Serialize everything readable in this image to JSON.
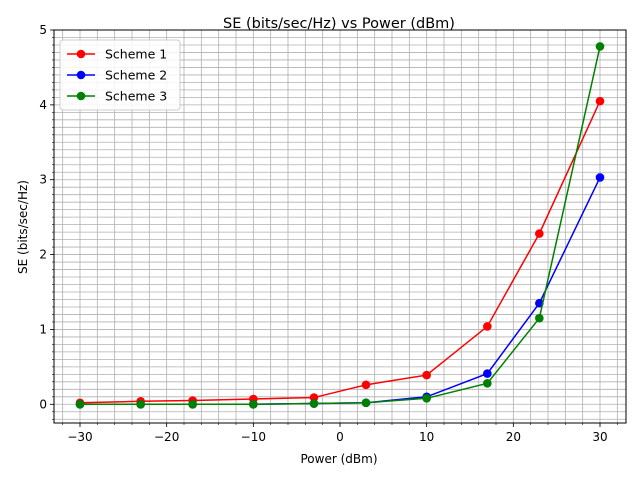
{
  "chart_data": {
    "type": "line",
    "title": "SE (bits/sec/Hz) vs Power (dBm)",
    "xlabel": "Power (dBm)",
    "ylabel": "SE (bits/sec/Hz)",
    "x": [
      -30,
      -23,
      -17,
      -10,
      -3,
      3,
      10,
      17,
      23,
      30
    ],
    "xlim": [
      -33,
      33
    ],
    "ylim": [
      -0.25,
      5.0
    ],
    "xticks": [
      -30,
      -20,
      -10,
      0,
      10,
      20,
      30
    ],
    "yticks": [
      0,
      1,
      2,
      3,
      4,
      5
    ],
    "xtick_labels": [
      "−30",
      "−20",
      "−10",
      "0",
      "10",
      "20",
      "30"
    ],
    "ytick_labels": [
      "0",
      "1",
      "2",
      "3",
      "4",
      "5"
    ],
    "minor_x_step": 2,
    "minor_y_step": 0.1,
    "grid": true,
    "legend_position": "top-left",
    "series": [
      {
        "name": "Scheme 1",
        "color": "#ff0000",
        "values": [
          0.02,
          0.04,
          0.05,
          0.07,
          0.09,
          0.26,
          0.39,
          1.04,
          2.28,
          4.05
        ]
      },
      {
        "name": "Scheme 2",
        "color": "#0000ff",
        "values": [
          0.0,
          0.0,
          0.0,
          0.0,
          0.01,
          0.02,
          0.1,
          0.41,
          1.35,
          3.03
        ]
      },
      {
        "name": "Scheme 3",
        "color": "#008000",
        "values": [
          0.0,
          0.0,
          0.0,
          0.0,
          0.01,
          0.02,
          0.08,
          0.28,
          1.15,
          4.78
        ]
      }
    ]
  }
}
